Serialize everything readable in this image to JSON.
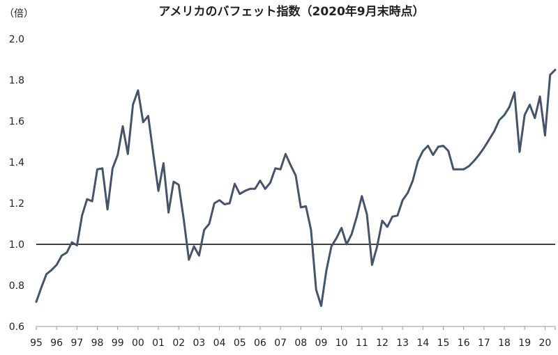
{
  "chart_data": {
    "type": "line",
    "title": "アメリカのバフェット指数（2020年9月末時点）",
    "unit_label": "（倍）",
    "xlabel": "",
    "ylabel": "",
    "ylim": [
      0.6,
      2.0
    ],
    "yticks": [
      "0.6",
      "0.8",
      "1.0",
      "1.2",
      "1.4",
      "1.6",
      "1.8",
      "2.0"
    ],
    "xticks": [
      "95",
      "96",
      "97",
      "98",
      "99",
      "00",
      "01",
      "02",
      "03",
      "04",
      "05",
      "06",
      "07",
      "08",
      "09",
      "10",
      "11",
      "12",
      "13",
      "14",
      "15",
      "16",
      "17",
      "18",
      "19",
      "20"
    ],
    "reference_line": 1.0,
    "grid": false,
    "legend": "none",
    "line_color": "#44546a",
    "series": [
      {
        "x": [
          1995.0,
          1995.25,
          1995.5,
          1995.75,
          1996.0,
          1996.25,
          1996.5,
          1996.75,
          1997.0,
          1997.25,
          1997.5,
          1997.75,
          1998.0,
          1998.25,
          1998.5,
          1998.75,
          1999.0,
          1999.25,
          1999.5,
          1999.75,
          2000.0,
          2000.25,
          2000.5,
          2000.75,
          2001.0,
          2001.25,
          2001.5,
          2001.75,
          2002.0,
          2002.25,
          2002.5,
          2002.75,
          2003.0,
          2003.25,
          2003.5,
          2003.75,
          2004.0,
          2004.25,
          2004.5,
          2004.75,
          2005.0,
          2005.25,
          2005.5,
          2005.75,
          2006.0,
          2006.25,
          2006.5,
          2006.75,
          2007.0,
          2007.25,
          2007.5,
          2007.75,
          2008.0,
          2008.25,
          2008.5,
          2008.75,
          2009.0,
          2009.25,
          2009.5,
          2009.75,
          2010.0,
          2010.25,
          2010.5,
          2010.75,
          2011.0,
          2011.25,
          2011.5,
          2011.75,
          2012.0,
          2012.25,
          2012.5,
          2012.75,
          2013.0,
          2013.25,
          2013.5,
          2013.75,
          2014.0,
          2014.25,
          2014.5,
          2014.75,
          2015.0,
          2015.25,
          2015.5,
          2015.75,
          2016.0,
          2016.25,
          2016.5,
          2016.75,
          2017.0,
          2017.25,
          2017.5,
          2017.75,
          2018.0,
          2018.25,
          2018.5,
          2018.75,
          2019.0,
          2019.25,
          2019.5,
          2019.75,
          2020.0,
          2020.25,
          2020.5
        ],
        "values": [
          0.72,
          0.79,
          0.855,
          0.875,
          0.9,
          0.945,
          0.96,
          1.01,
          0.995,
          1.14,
          1.22,
          1.21,
          1.365,
          1.37,
          1.17,
          1.37,
          1.435,
          1.575,
          1.44,
          1.68,
          1.75,
          1.595,
          1.625,
          1.44,
          1.26,
          1.395,
          1.155,
          1.305,
          1.29,
          1.12,
          0.925,
          0.99,
          0.945,
          1.07,
          1.1,
          1.2,
          1.215,
          1.195,
          1.2,
          1.295,
          1.245,
          1.26,
          1.27,
          1.27,
          1.31,
          1.27,
          1.3,
          1.37,
          1.365,
          1.44,
          1.385,
          1.335,
          1.18,
          1.185,
          1.07,
          0.78,
          0.7,
          0.87,
          0.99,
          1.03,
          1.08,
          1.0,
          1.05,
          1.135,
          1.235,
          1.145,
          0.9,
          0.99,
          1.115,
          1.085,
          1.135,
          1.14,
          1.215,
          1.25,
          1.31,
          1.405,
          1.455,
          1.48,
          1.435,
          1.475,
          1.48,
          1.455,
          1.365,
          1.365,
          1.365,
          1.38,
          1.405,
          1.435,
          1.47,
          1.51,
          1.55,
          1.605,
          1.63,
          1.67,
          1.74,
          1.45,
          1.63,
          1.68,
          1.615,
          1.72,
          1.53,
          1.825,
          1.85
        ]
      }
    ]
  }
}
